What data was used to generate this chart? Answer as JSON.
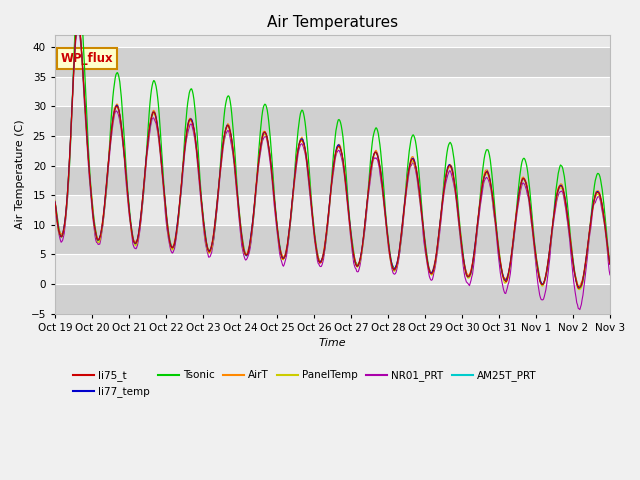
{
  "title": "Air Temperatures",
  "ylabel": "Air Temperature (C)",
  "xlabel": "Time",
  "ylim": [
    -5,
    42
  ],
  "yticks": [
    -5,
    0,
    5,
    10,
    15,
    20,
    25,
    30,
    35,
    40
  ],
  "xtick_labels": [
    "Oct 19",
    "Oct 20",
    "Oct 21",
    "Oct 22",
    "Oct 23",
    "Oct 24",
    "Oct 25",
    "Oct 26",
    "Oct 27",
    "Oct 28",
    "Oct 29",
    "Oct 30",
    "Oct 31",
    "Nov 1",
    "Nov 2",
    "Nov 3"
  ],
  "series_colors": {
    "li75_t": "#cc0000",
    "li77_temp": "#0000cc",
    "Tsonic": "#00cc00",
    "AirT": "#ff8800",
    "PanelTemp": "#cccc00",
    "NR01_PRT": "#aa00aa",
    "AM25T_PRT": "#00cccc"
  },
  "legend_box_color": "#ffffcc",
  "legend_box_edge": "#cc8800",
  "legend_box_text": "#cc0000",
  "legend_box_label": "WP_flux",
  "bg_color": "#f0f0f0",
  "plot_bg_color": "#e8e8e8",
  "band_color": "#d0d0d0",
  "title_fontsize": 11,
  "axis_label_fontsize": 8,
  "tick_fontsize": 7.5
}
